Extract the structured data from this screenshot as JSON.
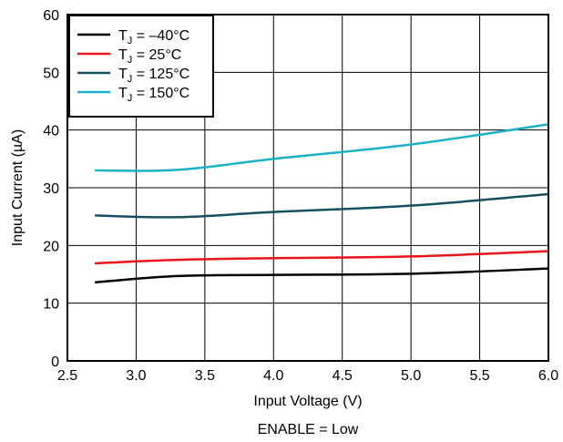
{
  "chart_data": {
    "type": "line",
    "title": "",
    "xlabel": "Input Voltage (V)",
    "ylabel": "Input Current (µA)",
    "caption": "ENABLE = Low",
    "xlim": [
      2.5,
      6.0
    ],
    "ylim": [
      0,
      60
    ],
    "xticks": [
      "2.5",
      "3.0",
      "3.5",
      "4.0",
      "4.5",
      "5.0",
      "5.5",
      "6.0"
    ],
    "yticks": [
      "0",
      "10",
      "20",
      "30",
      "40",
      "50",
      "60"
    ],
    "grid": true,
    "legend_position": "top-left",
    "x": [
      2.7,
      3.3,
      4.0,
      5.0,
      6.0
    ],
    "series": [
      {
        "name_main": "T",
        "name_sub": "J",
        "name_rest": " = –40°C",
        "color": "#000000",
        "values": [
          13.6,
          14.7,
          14.9,
          15.1,
          16.0
        ]
      },
      {
        "name_main": "T",
        "name_sub": "J",
        "name_rest": " = 25°C",
        "color": "#e8141a",
        "values": [
          16.9,
          17.5,
          17.8,
          18.1,
          19.0
        ]
      },
      {
        "name_main": "T",
        "name_sub": "J",
        "name_rest": " = 125°C",
        "color": "#14505f",
        "values": [
          25.2,
          24.9,
          25.8,
          26.9,
          28.9
        ]
      },
      {
        "name_main": "T",
        "name_sub": "J",
        "name_rest": " = 150°C",
        "color": "#1ab3c8",
        "values": [
          33.0,
          33.1,
          35.0,
          37.5,
          41.0
        ]
      }
    ]
  }
}
